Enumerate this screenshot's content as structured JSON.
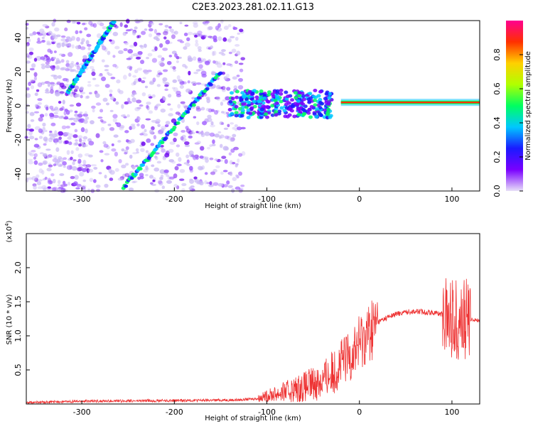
{
  "page_title": "C2E3.2023.281.02.11.G13",
  "chart_data": [
    {
      "type": "heatmap",
      "title": "",
      "xlabel": "Height of straight line (km)",
      "ylabel": "Frequency (Hz)",
      "xlim": [
        -360,
        130
      ],
      "ylim": [
        -50,
        50
      ],
      "xticks": [
        -300,
        -200,
        -100,
        0,
        100
      ],
      "yticks": [
        -40,
        -20,
        0,
        20,
        40
      ],
      "colorbar": {
        "label": "Normalized spectral amplitude",
        "range": [
          0,
          1
        ],
        "ticks": [
          0.0,
          0.2,
          0.4,
          0.6,
          0.8
        ],
        "colormap": [
          "#e8e0f8",
          "#7a00ff",
          "#1a1aff",
          "#00c8ff",
          "#00ff60",
          "#b0ff00",
          "#ffd000",
          "#ff3000",
          "#ff0090"
        ]
      },
      "features": [
        {
          "name": "upper diagonal trace",
          "x": [
            -315,
            -265
          ],
          "y": [
            8,
            50
          ]
        },
        {
          "name": "main diagonal trace",
          "x": [
            -255,
            -150
          ],
          "y": [
            -48,
            20
          ]
        },
        {
          "name": "scattered cluster",
          "x": [
            -140,
            -30
          ],
          "y": [
            -10,
            10
          ]
        },
        {
          "name": "steady band",
          "x": [
            -20,
            130
          ],
          "y": [
            2,
            2
          ]
        }
      ]
    },
    {
      "type": "line",
      "title": "",
      "xlabel": "Height of straight line (km)",
      "ylabel": "SNR (10 * v/v)",
      "y_multiplier_label": "(x10",
      "y_multiplier_exp": "4",
      "xlim": [
        -360,
        130
      ],
      "ylim": [
        0,
        2.5
      ],
      "xticks": [
        -300,
        -200,
        -100,
        0,
        100
      ],
      "yticks": [
        0.5,
        1.0,
        1.5,
        2.0
      ],
      "color": "#ee3333",
      "series": [
        {
          "x": [
            -360,
            -300,
            -200,
            -130,
            -110,
            -100,
            -80,
            -60,
            -40,
            -30,
            -20,
            -10,
            0,
            10,
            20,
            30,
            40,
            50,
            60,
            70,
            80,
            90,
            95,
            100,
            105,
            110,
            115,
            120,
            130
          ],
          "y": [
            0.02,
            0.04,
            0.05,
            0.06,
            0.08,
            0.12,
            0.18,
            0.25,
            0.35,
            0.45,
            0.6,
            0.72,
            0.9,
            1.05,
            1.2,
            1.27,
            1.32,
            1.35,
            1.36,
            1.35,
            1.34,
            1.32,
            1.3,
            1.28,
            1.25,
            1.22,
            1.24,
            1.24,
            1.23
          ]
        }
      ]
    }
  ]
}
